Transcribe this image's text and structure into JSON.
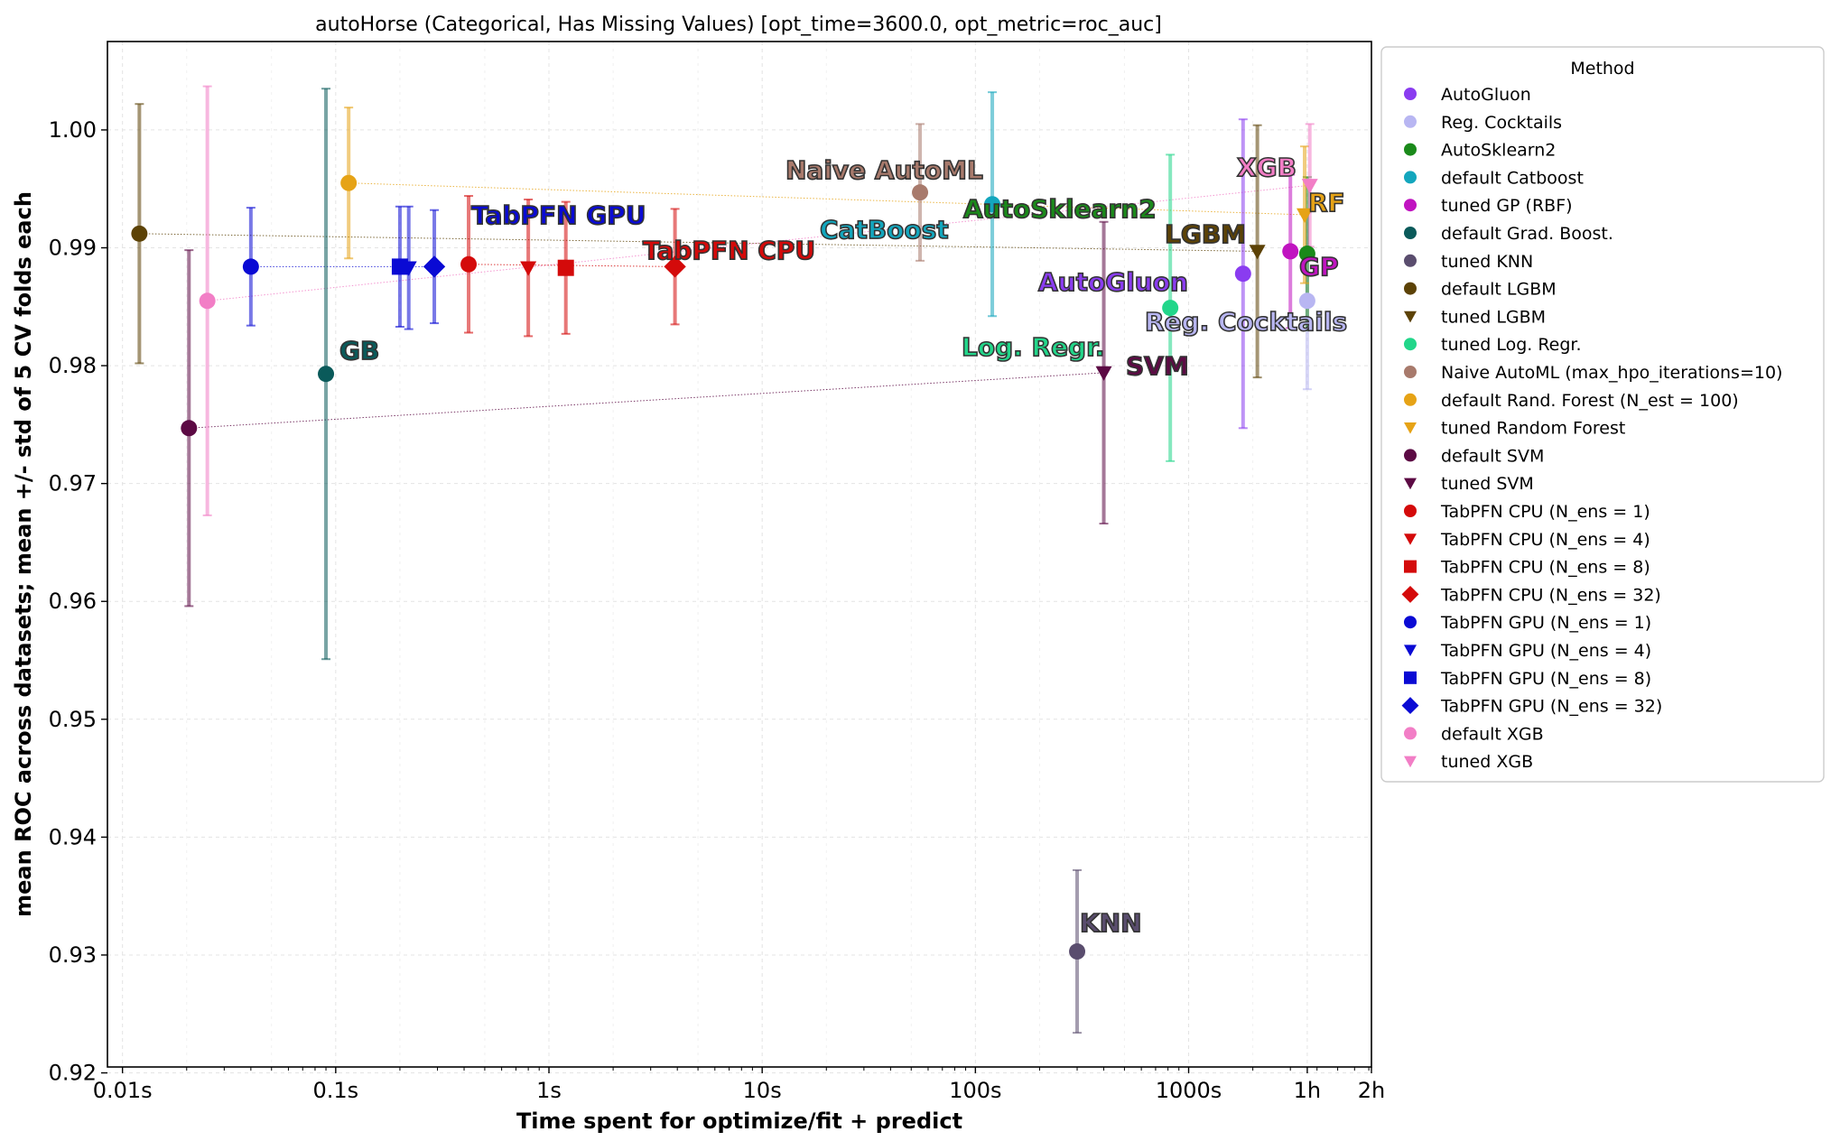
{
  "chart_data": {
    "type": "scatter",
    "title": "autoHorse (Categorical, Has Missing Values) [opt_time=3600.0, opt_metric=roc_auc]",
    "xlabel": "Time spent for optimize/fit + predict",
    "ylabel": "mean ROC across datasets; mean +/- std of 5 CV folds each",
    "xscale": "log",
    "xlim_seconds": [
      0.0085,
      7200
    ],
    "ylim": [
      0.9205,
      1.0075
    ],
    "x_ticks": [
      {
        "value": 0.01,
        "label": "0.01s"
      },
      {
        "value": 0.1,
        "label": "0.1s"
      },
      {
        "value": 1,
        "label": "1s"
      },
      {
        "value": 10,
        "label": "10s"
      },
      {
        "value": 100,
        "label": "100s"
      },
      {
        "value": 1000,
        "label": "1000s"
      },
      {
        "value": 3600,
        "label": "1h"
      },
      {
        "value": 7200,
        "label": "2h"
      }
    ],
    "y_ticks": [
      {
        "value": 0.92,
        "label": "0.92"
      },
      {
        "value": 0.93,
        "label": "0.93"
      },
      {
        "value": 0.94,
        "label": "0.94"
      },
      {
        "value": 0.95,
        "label": "0.95"
      },
      {
        "value": 0.96,
        "label": "0.96"
      },
      {
        "value": 0.97,
        "label": "0.97"
      },
      {
        "value": 0.98,
        "label": "0.98"
      },
      {
        "value": 0.99,
        "label": "0.99"
      },
      {
        "value": 1.0,
        "label": "1.00"
      }
    ],
    "grid": true,
    "legend_title": "Method",
    "legend_position": "outside-right",
    "series": [
      {
        "name": "AutoGluon",
        "color": "#8a3cf0",
        "marker": "circle",
        "x": 1800,
        "y": 0.9878,
        "std": 0.0131
      },
      {
        "name": "Reg. Cocktails",
        "color": "#b8b6f2",
        "marker": "circle",
        "x": 3600,
        "y": 0.9855,
        "std": 0.0075
      },
      {
        "name": "AutoSklearn2",
        "color": "#1a8a1a",
        "marker": "circle",
        "x": 3600,
        "y": 0.9895,
        "std": 0.0065
      },
      {
        "name": "default Catboost",
        "color": "#13a6bd",
        "marker": "circle",
        "x": 120,
        "y": 0.9937,
        "std": 0.0095
      },
      {
        "name": "tuned GP (RBF)",
        "color": "#c014c0",
        "marker": "circle",
        "x": 3000,
        "y": 0.9897,
        "std": 0.0065
      },
      {
        "name": "default Grad. Boost.",
        "color": "#0a5a5a",
        "marker": "circle",
        "x": 0.09,
        "y": 0.9793,
        "std": 0.0242
      },
      {
        "name": "tuned KNN",
        "color": "#5a4d6e",
        "marker": "circle",
        "x": 300,
        "y": 0.9303,
        "std": 0.0069
      },
      {
        "name": "default LGBM",
        "color": "#5c4206",
        "marker": "circle",
        "x": 0.012,
        "y": 0.9912,
        "std": 0.011
      },
      {
        "name": "tuned LGBM",
        "color": "#5c4206",
        "marker": "triangle-down",
        "x": 2100,
        "y": 0.9897,
        "std": 0.0107
      },
      {
        "name": "tuned Log. Regr.",
        "color": "#22d68a",
        "marker": "circle",
        "x": 820,
        "y": 0.9849,
        "std": 0.013
      },
      {
        "name": "Naive AutoML (max_hpo_iterations=10)",
        "color": "#a87a6c",
        "marker": "circle",
        "x": 55,
        "y": 0.9947,
        "std": 0.0058
      },
      {
        "name": "default Rand. Forest (N_est = 100)",
        "color": "#e6a316",
        "marker": "circle",
        "x": 0.115,
        "y": 0.9955,
        "std": 0.0064
      },
      {
        "name": "tuned Random Forest",
        "color": "#e6a316",
        "marker": "triangle-down",
        "x": 3500,
        "y": 0.9928,
        "std": 0.0058
      },
      {
        "name": "default SVM",
        "color": "#5c0a44",
        "marker": "circle",
        "x": 0.0205,
        "y": 0.9747,
        "std": 0.0151
      },
      {
        "name": "tuned SVM",
        "color": "#5c0a44",
        "marker": "triangle-down",
        "x": 400,
        "y": 0.9794,
        "std": 0.0128
      },
      {
        "name": "TabPFN CPU (N_ens =  1)",
        "color": "#d40a0a",
        "marker": "circle",
        "x": 0.42,
        "y": 0.9886,
        "std": 0.0058
      },
      {
        "name": "TabPFN CPU (N_ens =  4)",
        "color": "#d40a0a",
        "marker": "triangle-down",
        "x": 0.8,
        "y": 0.9883,
        "std": 0.0058
      },
      {
        "name": "TabPFN CPU (N_ens =  8)",
        "color": "#d40a0a",
        "marker": "square",
        "x": 1.2,
        "y": 0.9883,
        "std": 0.0056
      },
      {
        "name": "TabPFN CPU (N_ens = 32)",
        "color": "#d40a0a",
        "marker": "diamond",
        "x": 3.9,
        "y": 0.9884,
        "std": 0.0049
      },
      {
        "name": "TabPFN GPU (N_ens =  1)",
        "color": "#0a0ad4",
        "marker": "circle",
        "x": 0.04,
        "y": 0.9884,
        "std": 0.005
      },
      {
        "name": "TabPFN GPU (N_ens =  4)",
        "color": "#0a0ad4",
        "marker": "triangle-down",
        "x": 0.22,
        "y": 0.9883,
        "std": 0.0052
      },
      {
        "name": "TabPFN GPU (N_ens =  8)",
        "color": "#0a0ad4",
        "marker": "square",
        "x": 0.2,
        "y": 0.9884,
        "std": 0.0051
      },
      {
        "name": "TabPFN GPU (N_ens = 32)",
        "color": "#0a0ad4",
        "marker": "diamond",
        "x": 0.29,
        "y": 0.9884,
        "std": 0.0048
      },
      {
        "name": "default XGB",
        "color": "#f27ec6",
        "marker": "circle",
        "x": 0.025,
        "y": 0.9855,
        "std": 0.0182
      },
      {
        "name": "tuned XGB",
        "color": "#f27ec6",
        "marker": "triangle-down",
        "x": 3700,
        "y": 0.9953,
        "std": 0.0052
      }
    ],
    "connections": [
      {
        "color": "#5c4206",
        "from": [
          0.012,
          0.9912
        ],
        "to": [
          2100,
          0.9897
        ]
      },
      {
        "color": "#e6a316",
        "from": [
          0.115,
          0.9955
        ],
        "to": [
          3500,
          0.9928
        ]
      },
      {
        "color": "#5c0a44",
        "from": [
          0.0205,
          0.9747
        ],
        "to": [
          400,
          0.9794
        ]
      },
      {
        "color": "#f27ec6",
        "from": [
          0.025,
          0.9855
        ],
        "to": [
          3700,
          0.9953
        ]
      },
      {
        "color": "#d40a0a",
        "from": [
          0.42,
          0.9886
        ],
        "to": [
          3.9,
          0.9884
        ]
      },
      {
        "color": "#0a0ad4",
        "from": [
          0.04,
          0.9884
        ],
        "to": [
          0.29,
          0.9884
        ]
      }
    ],
    "annotations": [
      {
        "text": "TabPFN GPU",
        "color": "#0a0ad4"
      },
      {
        "text": "TabPFN CPU",
        "color": "#d40a0a"
      },
      {
        "text": "GB",
        "color": "#0a5a5a"
      },
      {
        "text": "Naive AutoML",
        "color": "#a87a6c"
      },
      {
        "text": "CatBoost",
        "color": "#13a6bd"
      },
      {
        "text": "AutoSklearn2",
        "color": "#1a8a1a"
      },
      {
        "text": "AutoGluon",
        "color": "#8a3cf0"
      },
      {
        "text": "Log. Regr.",
        "color": "#22d68a"
      },
      {
        "text": "SVM",
        "color": "#5c0a44"
      },
      {
        "text": "KNN",
        "color": "#5a4d6e"
      },
      {
        "text": "LGBM",
        "color": "#5c4206"
      },
      {
        "text": "XGB",
        "color": "#f27ec6"
      },
      {
        "text": "RF",
        "color": "#e6a316"
      },
      {
        "text": "GP",
        "color": "#c014c0"
      },
      {
        "text": "Reg. Cocktails",
        "color": "#b8b6f2"
      }
    ]
  }
}
